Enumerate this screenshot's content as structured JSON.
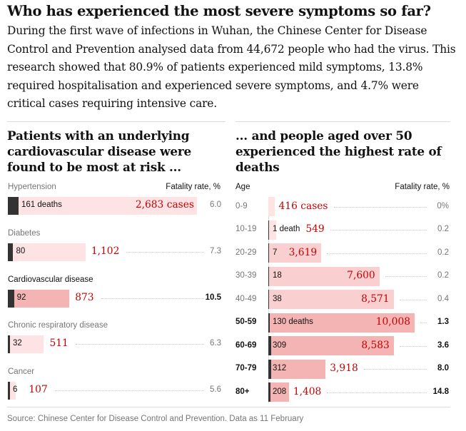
{
  "headline": "Who has experienced the most severe symptoms so far?",
  "standfirst": "During the first wave of infections in Wuhan, the Chinese Center for Disease Control and Prevention analysed data from 44,672 people who had the virus. This research showed that 80.9% of patients experienced mild symptoms, 13.8% required hospitalisation and experienced severe symptoms, and 4.7% were critical cases requiring intensive care.",
  "source": "Source: Chinese Center for Disease Control and Prevention. Data as 11 February",
  "colors": {
    "deaths_bar": "#333333",
    "cases_bar_light": "#fde3e3",
    "cases_bar_mid": "#f9cfcf",
    "cases_bar_strong": "#f5b4b4",
    "cases_text": "#c70000"
  },
  "chart_data": [
    {
      "type": "bar",
      "title": "Patients with an underlying cardiovascular disease were found to be most at risk ...",
      "rate_header": "Fatality rate, %",
      "categories": [
        "Hypertension",
        "Diabetes",
        "Cardiovascular disease",
        "Chronic respiratory disease",
        "Cancer"
      ],
      "highlight": "Cardiovascular disease",
      "series": [
        {
          "name": "deaths",
          "values": [
            161,
            80,
            92,
            32,
            6
          ],
          "labels": [
            "161 deaths",
            "80",
            "92",
            "32",
            "6"
          ]
        },
        {
          "name": "cases",
          "values": [
            2683,
            1102,
            873,
            511,
            107
          ],
          "labels": [
            "2,683 cases",
            "1,102",
            "873",
            "511",
            "107"
          ]
        }
      ],
      "fatality_rate": [
        "6.0",
        "7.3",
        "10.5",
        "6.3",
        "5.6"
      ]
    },
    {
      "type": "bar",
      "title": "... and people aged over 50 experienced the highest rate of deaths",
      "category_header": "Age",
      "rate_header": "Fatality rate, %",
      "categories": [
        "0-9",
        "10-19",
        "20-29",
        "30-39",
        "40-49",
        "50-59",
        "60-69",
        "70-79",
        "80+"
      ],
      "highlight": [
        "50-59",
        "60-69",
        "70-79",
        "80+"
      ],
      "series": [
        {
          "name": "deaths",
          "values": [
            0,
            1,
            7,
            18,
            38,
            130,
            309,
            312,
            208
          ],
          "labels": [
            "",
            "1 death",
            "7",
            "18",
            "38",
            "130 deaths",
            "309",
            "312",
            "208"
          ]
        },
        {
          "name": "cases",
          "values": [
            416,
            549,
            3619,
            7600,
            8571,
            10008,
            8583,
            3918,
            1408
          ],
          "labels": [
            "416 cases",
            "549",
            "3,619",
            "7,600",
            "8,571",
            "10,008",
            "8,583",
            "3,918",
            "1,408"
          ]
        }
      ],
      "fatality_rate": [
        "0%",
        "0.2",
        "0.2",
        "0.2",
        "0.4",
        "1.3",
        "3.6",
        "8.0",
        "14.8"
      ]
    }
  ]
}
